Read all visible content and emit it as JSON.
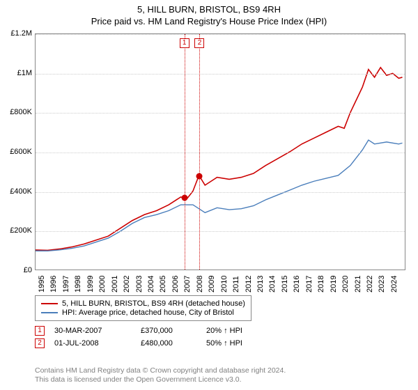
{
  "title": "5, HILL BURN, BRISTOL, BS9 4RH",
  "subtitle": "Price paid vs. HM Land Registry's House Price Index (HPI)",
  "chart": {
    "type": "line",
    "background_color": "#ffffff",
    "grid_color": "#cccccc",
    "border_color": "#888888",
    "x_range": [
      1995,
      2025.5
    ],
    "y_range": [
      0,
      1200000
    ],
    "ytick_step": 200000,
    "ytick_labels": [
      "£0",
      "£200K",
      "£400K",
      "£600K",
      "£800K",
      "£1M",
      "£1.2M"
    ],
    "xtick_step": 1,
    "xtick_labels": [
      "1995",
      "1996",
      "1997",
      "1998",
      "1999",
      "2000",
      "2001",
      "2002",
      "2003",
      "2004",
      "2005",
      "2006",
      "2007",
      "2008",
      "2009",
      "2010",
      "2011",
      "2012",
      "2013",
      "2014",
      "2015",
      "2016",
      "2017",
      "2018",
      "2019",
      "2020",
      "2021",
      "2022",
      "2023",
      "2024"
    ],
    "tick_fontsize": 11,
    "series": [
      {
        "name": "property",
        "label": "5, HILL BURN, BRISTOL, BS9 4RH (detached house)",
        "color": "#cc0000",
        "line_width": 1.6,
        "points": [
          [
            1995,
            100000
          ],
          [
            1996,
            98000
          ],
          [
            1997,
            105000
          ],
          [
            1998,
            115000
          ],
          [
            1999,
            130000
          ],
          [
            2000,
            150000
          ],
          [
            2001,
            170000
          ],
          [
            2002,
            210000
          ],
          [
            2003,
            250000
          ],
          [
            2004,
            280000
          ],
          [
            2005,
            300000
          ],
          [
            2006,
            330000
          ],
          [
            2007,
            370000
          ],
          [
            2007.5,
            360000
          ],
          [
            2008,
            400000
          ],
          [
            2008.5,
            480000
          ],
          [
            2009,
            430000
          ],
          [
            2009.5,
            450000
          ],
          [
            2010,
            470000
          ],
          [
            2011,
            460000
          ],
          [
            2012,
            470000
          ],
          [
            2013,
            490000
          ],
          [
            2014,
            530000
          ],
          [
            2015,
            565000
          ],
          [
            2016,
            600000
          ],
          [
            2017,
            640000
          ],
          [
            2018,
            670000
          ],
          [
            2019,
            700000
          ],
          [
            2020,
            730000
          ],
          [
            2020.5,
            720000
          ],
          [
            2021,
            800000
          ],
          [
            2022,
            930000
          ],
          [
            2022.5,
            1020000
          ],
          [
            2023,
            980000
          ],
          [
            2023.5,
            1030000
          ],
          [
            2024,
            990000
          ],
          [
            2024.5,
            1000000
          ],
          [
            2025,
            975000
          ],
          [
            2025.3,
            980000
          ]
        ]
      },
      {
        "name": "hpi",
        "label": "HPI: Average price, detached house, City of Bristol",
        "color": "#4a7ebb",
        "line_width": 1.4,
        "points": [
          [
            1995,
            95000
          ],
          [
            1996,
            95000
          ],
          [
            1997,
            100000
          ],
          [
            1998,
            108000
          ],
          [
            1999,
            120000
          ],
          [
            2000,
            140000
          ],
          [
            2001,
            160000
          ],
          [
            2002,
            195000
          ],
          [
            2003,
            235000
          ],
          [
            2004,
            265000
          ],
          [
            2005,
            280000
          ],
          [
            2006,
            300000
          ],
          [
            2007,
            330000
          ],
          [
            2008,
            330000
          ],
          [
            2008.5,
            310000
          ],
          [
            2009,
            290000
          ],
          [
            2010,
            315000
          ],
          [
            2011,
            305000
          ],
          [
            2012,
            310000
          ],
          [
            2013,
            325000
          ],
          [
            2014,
            355000
          ],
          [
            2015,
            380000
          ],
          [
            2016,
            405000
          ],
          [
            2017,
            430000
          ],
          [
            2018,
            450000
          ],
          [
            2019,
            465000
          ],
          [
            2020,
            480000
          ],
          [
            2021,
            530000
          ],
          [
            2022,
            610000
          ],
          [
            2022.5,
            660000
          ],
          [
            2023,
            640000
          ],
          [
            2024,
            650000
          ],
          [
            2025,
            640000
          ],
          [
            2025.3,
            645000
          ]
        ]
      }
    ],
    "markers": [
      {
        "n": "1",
        "x": 2007.25,
        "y": 370000,
        "color": "#cc0000"
      },
      {
        "n": "2",
        "x": 2008.5,
        "y": 480000,
        "color": "#cc0000"
      }
    ]
  },
  "legend": {
    "items": [
      {
        "color": "#cc0000",
        "label": "5, HILL BURN, BRISTOL, BS9 4RH (detached house)"
      },
      {
        "color": "#4a7ebb",
        "label": "HPI: Average price, detached house, City of Bristol"
      }
    ]
  },
  "sales": [
    {
      "n": "1",
      "color": "#cc0000",
      "date": "30-MAR-2007",
      "price": "£370,000",
      "pct": "20% ↑ HPI"
    },
    {
      "n": "2",
      "color": "#cc0000",
      "date": "01-JUL-2008",
      "price": "£480,000",
      "pct": "50% ↑ HPI"
    }
  ],
  "footer": {
    "line1": "Contains HM Land Registry data © Crown copyright and database right 2024.",
    "line2": "This data is licensed under the Open Government Licence v3.0."
  }
}
